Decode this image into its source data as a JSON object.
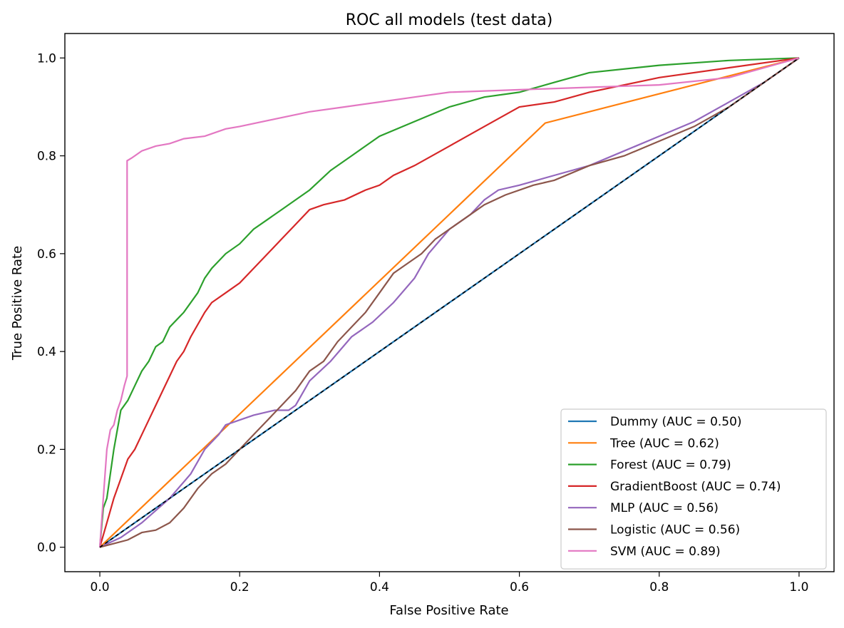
{
  "chart_data": {
    "type": "line",
    "title": "ROC all models (test data)",
    "xlabel": "False Positive Rate",
    "ylabel": "True Positive Rate",
    "xlim": [
      -0.05,
      1.05
    ],
    "ylim": [
      -0.05,
      1.05
    ],
    "x_ticks": [
      "0.0",
      "0.2",
      "0.4",
      "0.6",
      "0.8",
      "1.0"
    ],
    "y_ticks": [
      "0.0",
      "0.2",
      "0.4",
      "0.6",
      "0.8",
      "1.0"
    ],
    "grid": false,
    "legend_position": "lower-right",
    "reference_line": {
      "x": [
        0,
        1
      ],
      "y": [
        0,
        1
      ],
      "color": "#000000",
      "style": "dashed"
    },
    "series": [
      {
        "name": "Dummy (AUC = 0.50)",
        "color": "#1f77b4",
        "x": [
          0,
          1
        ],
        "y": [
          0,
          1
        ]
      },
      {
        "name": "Tree (AUC = 0.62)",
        "color": "#ff7f0e",
        "x": [
          0,
          0.637,
          1
        ],
        "y": [
          0,
          0.867,
          1
        ]
      },
      {
        "name": "Forest (AUC = 0.79)",
        "color": "#2ca02c",
        "x": [
          0,
          0.005,
          0.01,
          0.015,
          0.02,
          0.03,
          0.04,
          0.05,
          0.06,
          0.07,
          0.08,
          0.09,
          0.1,
          0.12,
          0.14,
          0.15,
          0.16,
          0.18,
          0.2,
          0.22,
          0.24,
          0.26,
          0.28,
          0.3,
          0.33,
          0.36,
          0.4,
          0.45,
          0.5,
          0.55,
          0.6,
          0.65,
          0.7,
          0.8,
          0.9,
          1
        ],
        "y": [
          0,
          0.08,
          0.1,
          0.15,
          0.2,
          0.28,
          0.3,
          0.33,
          0.36,
          0.38,
          0.41,
          0.42,
          0.45,
          0.48,
          0.52,
          0.55,
          0.57,
          0.6,
          0.62,
          0.65,
          0.67,
          0.69,
          0.71,
          0.73,
          0.77,
          0.8,
          0.84,
          0.87,
          0.9,
          0.92,
          0.93,
          0.95,
          0.97,
          0.985,
          0.995,
          1
        ]
      },
      {
        "name": "GradientBoost (AUC = 0.74)",
        "color": "#d62728",
        "x": [
          0,
          0.01,
          0.02,
          0.03,
          0.04,
          0.05,
          0.06,
          0.07,
          0.08,
          0.09,
          0.1,
          0.11,
          0.12,
          0.13,
          0.15,
          0.16,
          0.18,
          0.2,
          0.22,
          0.24,
          0.26,
          0.28,
          0.3,
          0.32,
          0.35,
          0.38,
          0.4,
          0.42,
          0.45,
          0.5,
          0.55,
          0.6,
          0.65,
          0.7,
          0.8,
          0.9,
          1
        ],
        "y": [
          0,
          0.05,
          0.1,
          0.14,
          0.18,
          0.2,
          0.23,
          0.26,
          0.29,
          0.32,
          0.35,
          0.38,
          0.4,
          0.43,
          0.48,
          0.5,
          0.52,
          0.54,
          0.57,
          0.6,
          0.63,
          0.66,
          0.69,
          0.7,
          0.71,
          0.73,
          0.74,
          0.76,
          0.78,
          0.82,
          0.86,
          0.9,
          0.91,
          0.93,
          0.96,
          0.98,
          1
        ]
      },
      {
        "name": "MLP (AUC = 0.56)",
        "color": "#9467bd",
        "x": [
          0,
          0.03,
          0.06,
          0.1,
          0.13,
          0.15,
          0.17,
          0.18,
          0.2,
          0.22,
          0.25,
          0.27,
          0.28,
          0.3,
          0.33,
          0.36,
          0.39,
          0.42,
          0.45,
          0.47,
          0.5,
          0.53,
          0.55,
          0.57,
          0.6,
          0.65,
          0.7,
          0.75,
          0.8,
          0.85,
          0.9,
          0.95,
          1
        ],
        "y": [
          0,
          0.02,
          0.05,
          0.1,
          0.15,
          0.2,
          0.23,
          0.25,
          0.26,
          0.27,
          0.28,
          0.28,
          0.29,
          0.34,
          0.38,
          0.43,
          0.46,
          0.5,
          0.55,
          0.6,
          0.65,
          0.68,
          0.71,
          0.73,
          0.74,
          0.76,
          0.78,
          0.81,
          0.84,
          0.87,
          0.91,
          0.95,
          1
        ]
      },
      {
        "name": "Logistic (AUC = 0.56)",
        "color": "#8c564b",
        "x": [
          0,
          0.04,
          0.06,
          0.08,
          0.1,
          0.12,
          0.14,
          0.16,
          0.18,
          0.2,
          0.22,
          0.24,
          0.26,
          0.28,
          0.3,
          0.32,
          0.34,
          0.36,
          0.38,
          0.4,
          0.42,
          0.44,
          0.46,
          0.48,
          0.5,
          0.52,
          0.55,
          0.58,
          0.62,
          0.65,
          0.7,
          0.75,
          0.8,
          0.85,
          0.9,
          0.95,
          1
        ],
        "y": [
          0,
          0.015,
          0.03,
          0.035,
          0.05,
          0.08,
          0.12,
          0.15,
          0.17,
          0.2,
          0.23,
          0.26,
          0.29,
          0.32,
          0.36,
          0.38,
          0.42,
          0.45,
          0.48,
          0.52,
          0.56,
          0.58,
          0.6,
          0.63,
          0.65,
          0.67,
          0.7,
          0.72,
          0.74,
          0.75,
          0.78,
          0.8,
          0.83,
          0.86,
          0.9,
          0.95,
          1
        ]
      },
      {
        "name": "SVM (AUC = 0.89)",
        "color": "#e377c2",
        "x": [
          0,
          0.005,
          0.01,
          0.015,
          0.02,
          0.025,
          0.03,
          0.035,
          0.039,
          0.039,
          0.045,
          0.05,
          0.06,
          0.08,
          0.1,
          0.12,
          0.15,
          0.18,
          0.2,
          0.25,
          0.3,
          0.35,
          0.4,
          0.45,
          0.5,
          0.6,
          0.7,
          0.8,
          0.9,
          1
        ],
        "y": [
          0,
          0.1,
          0.2,
          0.24,
          0.25,
          0.28,
          0.3,
          0.33,
          0.35,
          0.79,
          0.795,
          0.8,
          0.81,
          0.82,
          0.825,
          0.835,
          0.84,
          0.855,
          0.86,
          0.875,
          0.89,
          0.9,
          0.91,
          0.92,
          0.93,
          0.935,
          0.94,
          0.945,
          0.96,
          1
        ]
      }
    ]
  }
}
